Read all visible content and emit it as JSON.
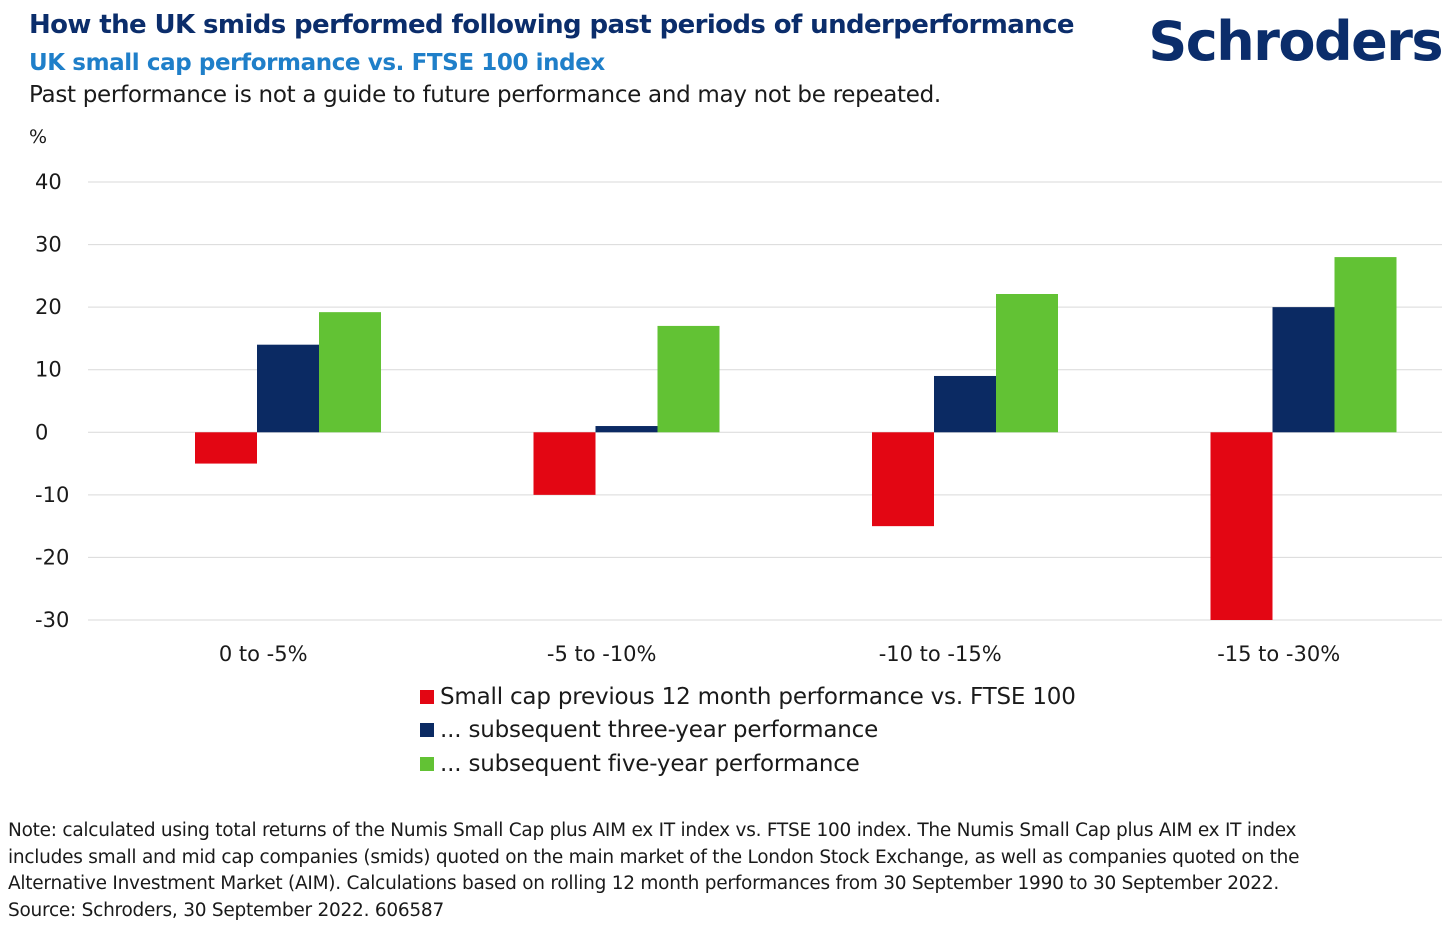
{
  "header": {
    "title": "How the UK smids performed following past periods of underperformance",
    "subtitle": "UK small cap performance vs. FTSE 100 index",
    "disclaimer": "Past performance is not a guide to future performance and may not be repeated.",
    "logo_text": "Schroders"
  },
  "chart_data": {
    "type": "bar",
    "title": "How the UK smids performed following past periods of underperformance",
    "subtitle": "UK small cap performance vs. FTSE 100 index",
    "ylabel": "%",
    "xlabel": "",
    "ylim": [
      -30,
      40
    ],
    "yticks": [
      40,
      30,
      20,
      10,
      0,
      -10,
      -20,
      -30
    ],
    "grid": true,
    "legend_position": "bottom",
    "categories": [
      "0 to -5%",
      "-5 to -10%",
      "-10 to -15%",
      "-15 to -30%"
    ],
    "series": [
      {
        "name": "Small cap previous 12 month performance vs. FTSE 100",
        "color": "#e30613",
        "values": [
          -5,
          -10,
          -15,
          -30
        ]
      },
      {
        "name": "... subsequent three-year performance",
        "color": "#0b2a63",
        "values": [
          14,
          1,
          9,
          20
        ]
      },
      {
        "name": "... subsequent five-year performance",
        "color": "#62c234",
        "values": [
          19.2,
          17,
          22.1,
          28
        ]
      }
    ]
  },
  "footnote": {
    "lines": [
      "Note: calculated using total returns of the Numis Small Cap plus AIM ex IT index vs. FTSE 100 index. The Numis Small Cap plus AIM ex IT index",
      "includes small and mid cap companies (smids) quoted on the main market of the London Stock Exchange, as well as companies quoted on the",
      "Alternative Investment Market (AIM). Calculations based on rolling 12 month performances from 30 September 1990 to 30 September 2022.",
      "Source: Schroders, 30 September 2022. 606587"
    ]
  }
}
